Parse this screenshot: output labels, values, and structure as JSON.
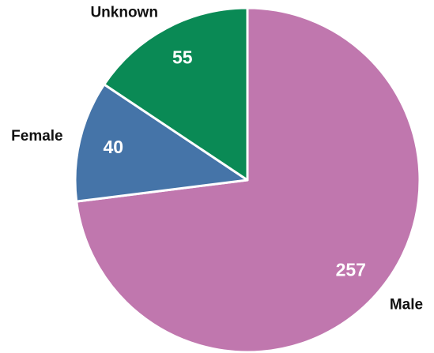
{
  "chart_data": {
    "type": "pie",
    "categories": [
      "Male",
      "Female",
      "Unknown"
    ],
    "values": [
      257,
      40,
      55
    ],
    "colors": [
      "#c077ae",
      "#4574a8",
      "#0a8a55"
    ]
  }
}
